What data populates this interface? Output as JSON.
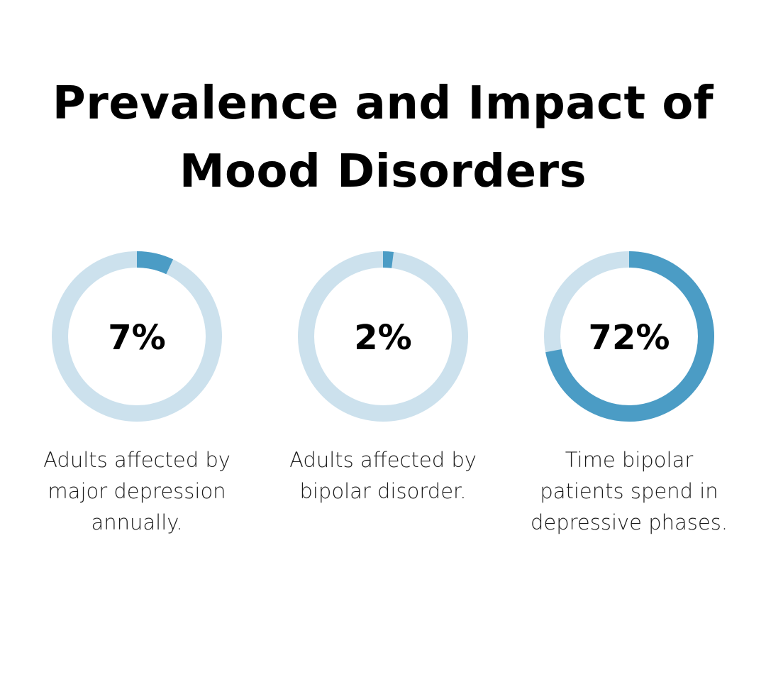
{
  "title": "Prevalence and Impact of Mood Disorders",
  "colors": {
    "track": "#cce1ed",
    "fill": "#4b9cc5",
    "text": "#000000"
  },
  "chart_data": {
    "type": "pie",
    "items": [
      {
        "percent": 7,
        "label": "7%",
        "caption": "Adults affected by major depression annually."
      },
      {
        "percent": 2,
        "label": "2%",
        "caption": "Adults affected by bipolar disorder."
      },
      {
        "percent": 72,
        "label": "72%",
        "caption": "Time bipolar patients spend in depressive phases."
      }
    ]
  }
}
